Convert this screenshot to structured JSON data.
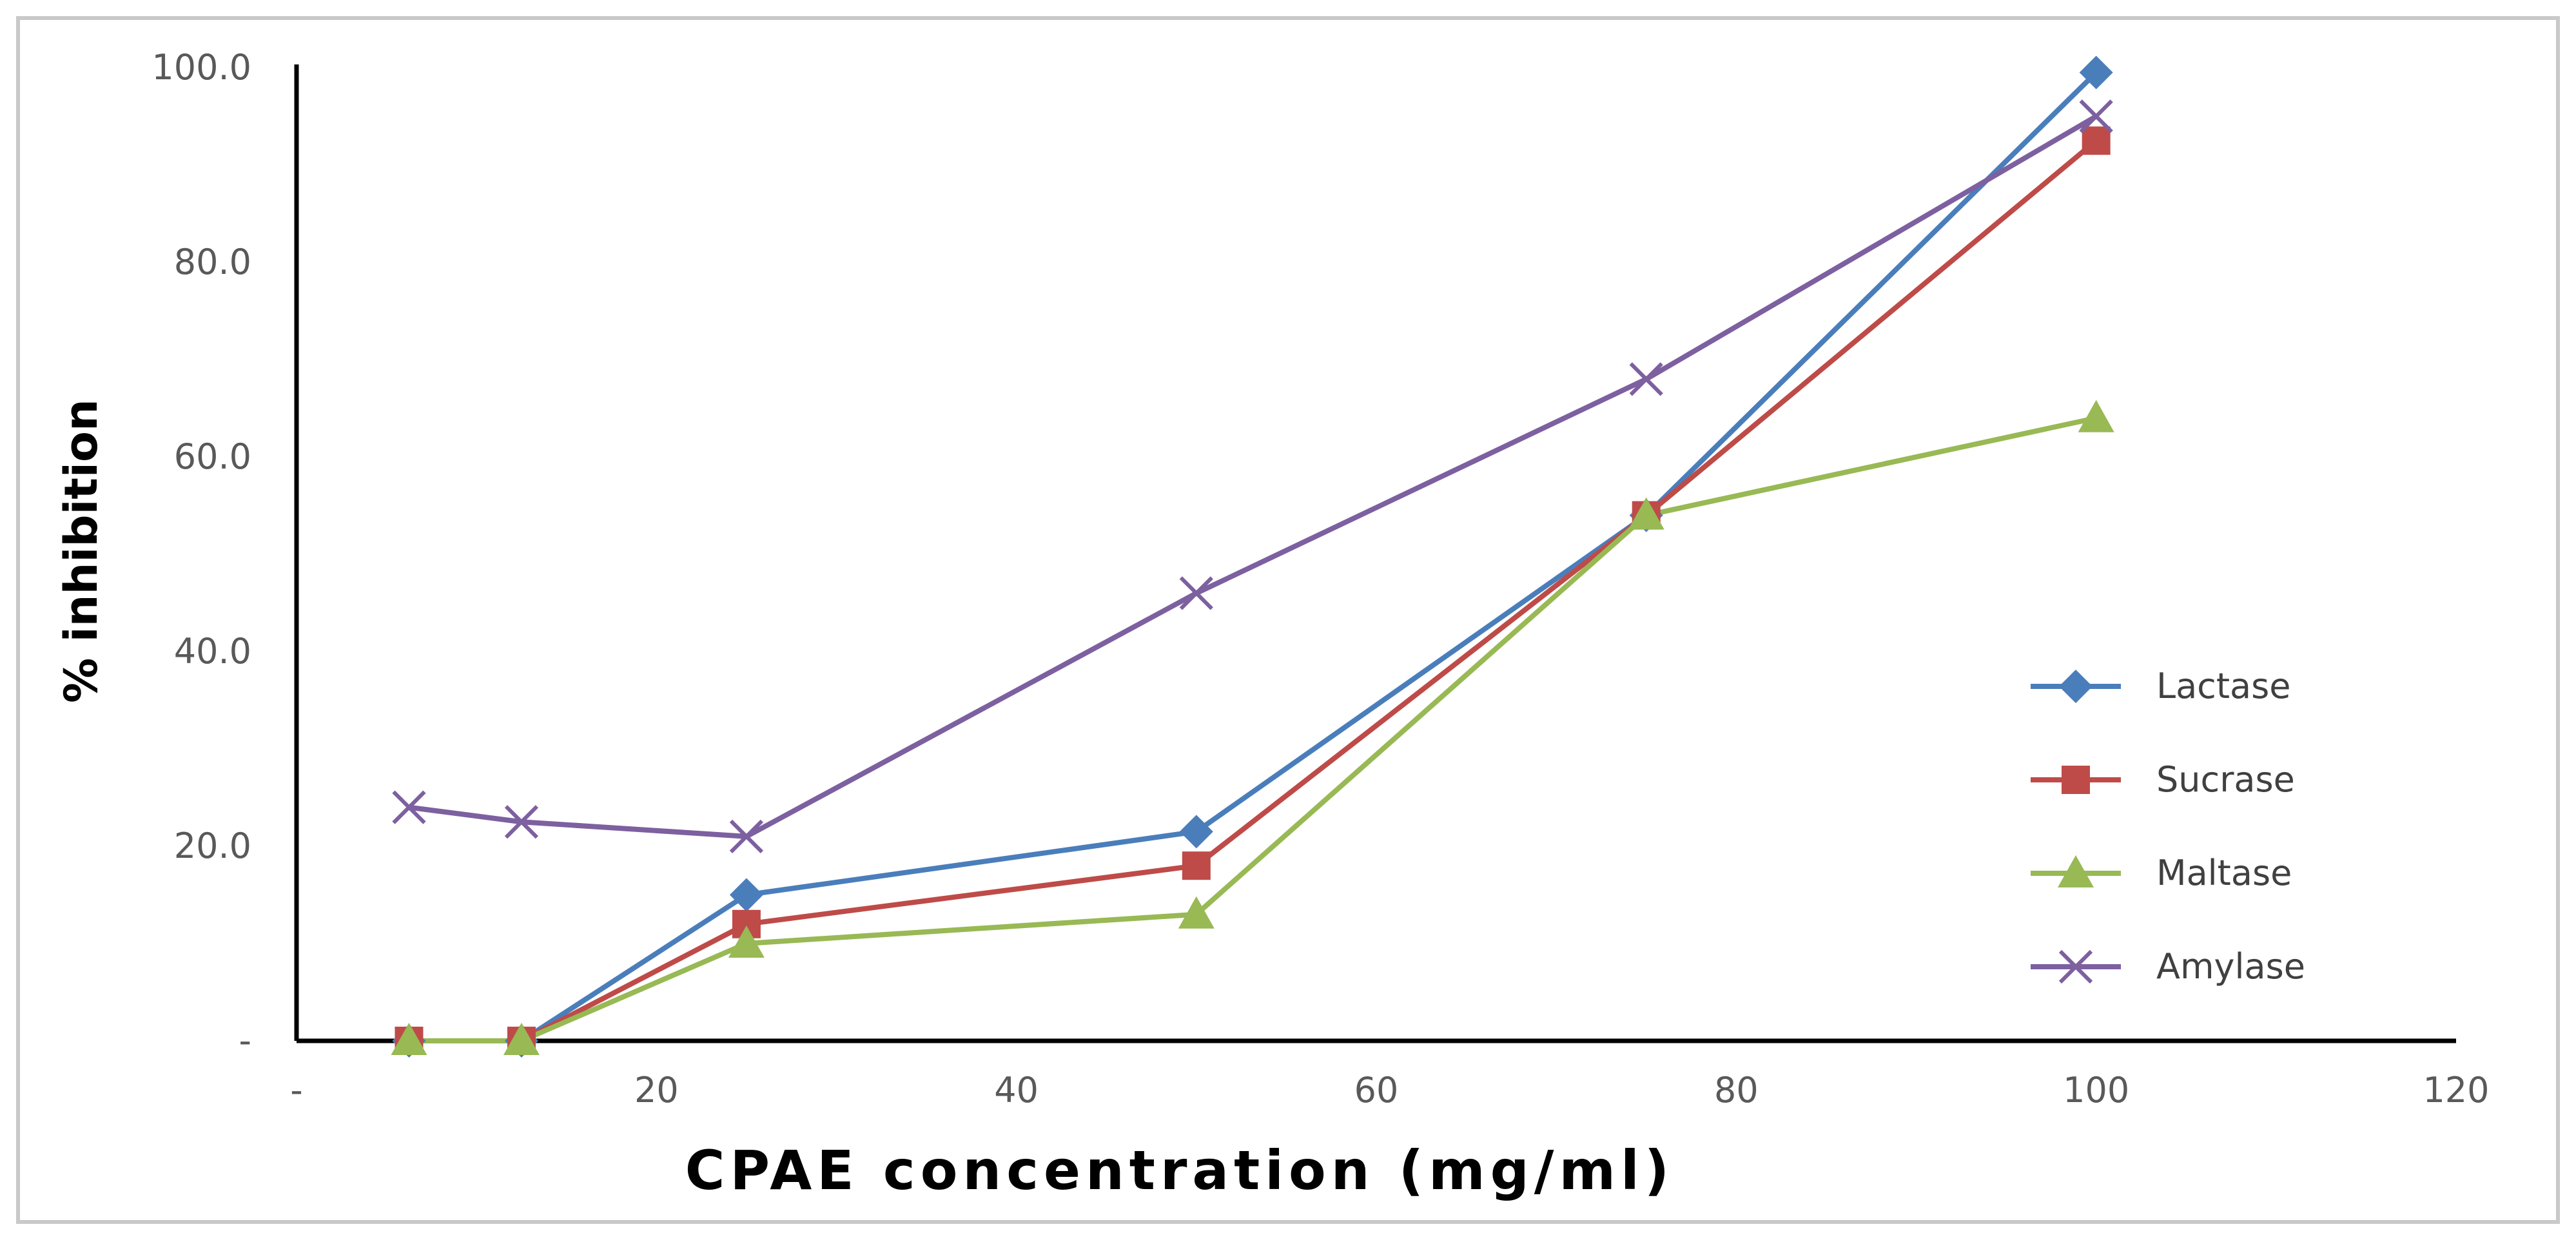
{
  "chart_data": {
    "type": "line",
    "title": "",
    "xlabel": "CPAE concentration  (mg/ml)",
    "ylabel": "% inhibition",
    "xlim": [
      0,
      120
    ],
    "ylim": [
      0,
      100
    ],
    "x_ticks": [
      0,
      20,
      40,
      60,
      80,
      100,
      120
    ],
    "x_tick_labels": [
      "-",
      "20",
      "40",
      "60",
      "80",
      "100",
      "120"
    ],
    "y_ticks": [
      0,
      20,
      40,
      60,
      80,
      100
    ],
    "y_tick_labels": [
      "-",
      "20.0",
      "40.0",
      "60.0",
      "80.0",
      "100.0"
    ],
    "grid": false,
    "legend_position": "right",
    "x": [
      6.25,
      12.5,
      25,
      50,
      75,
      100
    ],
    "series": [
      {
        "name": "Lactase",
        "color": "#4a7ebb",
        "marker": "diamond",
        "values": [
          0,
          0,
          15.0,
          21.5,
          54.0,
          99.5
        ]
      },
      {
        "name": "Sucrase",
        "color": "#be4b48",
        "marker": "square",
        "values": [
          0,
          0,
          12.0,
          18.0,
          54.0,
          92.5
        ]
      },
      {
        "name": "Maltase",
        "color": "#98b954",
        "marker": "triangle",
        "values": [
          0,
          0,
          10.0,
          13.0,
          54.0,
          64.0
        ]
      },
      {
        "name": "Amylase",
        "color": "#7d60a0",
        "marker": "x",
        "values": [
          24.0,
          22.5,
          21.0,
          46.0,
          68.0,
          95.0
        ]
      }
    ]
  }
}
